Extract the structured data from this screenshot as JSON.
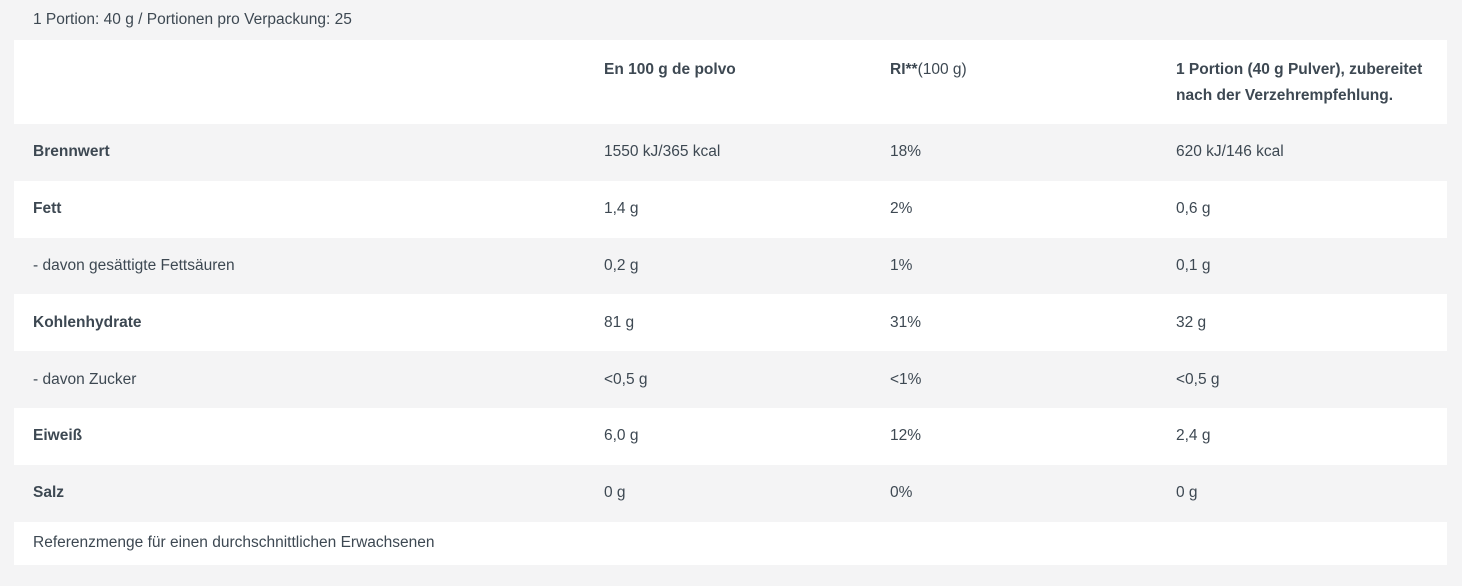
{
  "page": {
    "background_color": "#f4f4f5",
    "card_color": "#ffffff",
    "text_color": "#3d4852",
    "portion_line": "1 Portion: 40 g / Portionen pro Verpackung: 25"
  },
  "table": {
    "headers": {
      "nutrient": "",
      "per100g": "En 100 g de polvo",
      "ri_bold": "RI**",
      "ri_rest": "(100 g)",
      "portion_line1": "1 Portion (40 g Pulver), zubereitet",
      "portion_line2": "nach der Verzehrempfehlung."
    },
    "rows": [
      {
        "label": "Brennwert",
        "bold": true,
        "per100g": "1550 kJ/365 kcal",
        "ri": "18%",
        "portion": "620 kJ/146 kcal"
      },
      {
        "label": "Fett",
        "bold": true,
        "per100g": "1,4 g",
        "ri": "2%",
        "portion": "0,6 g"
      },
      {
        "label": "- davon gesättigte Fettsäuren",
        "bold": false,
        "per100g": "0,2 g",
        "ri": "1%",
        "portion": "0,1 g"
      },
      {
        "label": "Kohlenhydrate",
        "bold": true,
        "per100g": "81 g",
        "ri": "31%",
        "portion": "32 g"
      },
      {
        "label": "- davon Zucker",
        "bold": false,
        "per100g": "<0,5 g",
        "ri": "<1%",
        "portion": "<0,5 g"
      },
      {
        "label": "Eiweiß",
        "bold": true,
        "per100g": "6,0 g",
        "ri": "12%",
        "portion": "2,4 g"
      },
      {
        "label": "Salz",
        "bold": true,
        "per100g": "0 g",
        "ri": "0%",
        "portion": "0 g"
      }
    ],
    "footer": "Referenzmenge für einen durchschnittlichen Erwachsenen"
  }
}
